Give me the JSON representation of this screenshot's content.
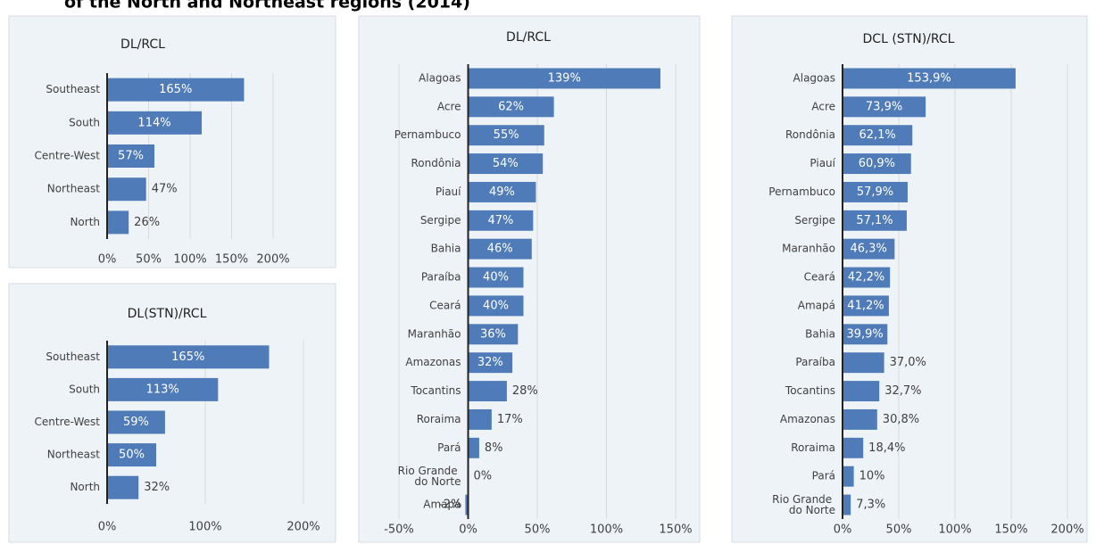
{
  "header": {
    "title": "of the North and Northeast regions (2014)"
  },
  "chart_data": [
    {
      "type": "bar",
      "title": "DL/RCL",
      "color": "#4f7cb8",
      "grid": true,
      "categories": [
        "Southeast",
        "South",
        "Centre-West",
        "Northeast",
        "North"
      ],
      "values": [
        165,
        114,
        57,
        47,
        26
      ],
      "value_labels": [
        "165%",
        "114%",
        "57%",
        "47%",
        "26%"
      ],
      "xlim": [
        0,
        200
      ],
      "xticks": [
        {
          "value": 0,
          "label": "0%"
        },
        {
          "value": 50,
          "label": "50%"
        },
        {
          "value": 100,
          "label": "100%"
        },
        {
          "value": 150,
          "label": "150%"
        },
        {
          "value": 200,
          "label": "200%"
        }
      ]
    },
    {
      "type": "bar",
      "title": "DL(STN)/RCL",
      "color": "#4f7cb8",
      "grid": true,
      "categories": [
        "Southeast",
        "South",
        "Centre-West",
        "Northeast",
        "North"
      ],
      "values": [
        165,
        113,
        59,
        50,
        32
      ],
      "value_labels": [
        "165%",
        "113%",
        "59%",
        "50%",
        "32%"
      ],
      "xlim": [
        0,
        200
      ],
      "xticks": [
        {
          "value": 0,
          "label": "0%"
        },
        {
          "value": 100,
          "label": "100%"
        },
        {
          "value": 200,
          "label": "200%"
        }
      ]
    },
    {
      "type": "bar",
      "title": "DL/RCL",
      "color": "#4f7cb8",
      "grid": true,
      "categories": [
        "Alagoas",
        "Acre",
        "Pernambuco",
        "Rondônia",
        "Piauí",
        "Sergipe",
        "Bahia",
        "Paraíba",
        "Ceará",
        "Maranhão",
        "Amazonas",
        "Tocantins",
        "Roraima",
        "Pará",
        "Rio Grande do Norte",
        "Amapá"
      ],
      "values": [
        139,
        62,
        55,
        54,
        49,
        47,
        46,
        40,
        40,
        36,
        32,
        28,
        17,
        8,
        0,
        -2
      ],
      "value_labels": [
        "139%",
        "62%",
        "55%",
        "54%",
        "49%",
        "47%",
        "46%",
        "40%",
        "40%",
        "36%",
        "32%",
        "28%",
        "17%",
        "8%",
        "0%",
        "-2%"
      ],
      "xlim": [
        -50,
        150
      ],
      "xticks": [
        {
          "value": -50,
          "label": "-50%"
        },
        {
          "value": 0,
          "label": "0%"
        },
        {
          "value": 50,
          "label": "50%"
        },
        {
          "value": 100,
          "label": "100%"
        },
        {
          "value": 150,
          "label": "150%"
        }
      ]
    },
    {
      "type": "bar",
      "title": "DCL (STN)/RCL",
      "color": "#4f7cb8",
      "grid": true,
      "categories": [
        "Alagoas",
        "Acre",
        "Rondônia",
        "Piauí",
        "Pernambuco",
        "Sergipe",
        "Maranhão",
        "Ceará",
        "Amapá",
        "Bahia",
        "Paraíba",
        "Tocantins",
        "Amazonas",
        "Roraima",
        "Pará",
        "Rio Grande do Norte"
      ],
      "values": [
        153.9,
        73.9,
        62.1,
        60.9,
        57.9,
        57.1,
        46.3,
        42.2,
        41.2,
        39.9,
        37.0,
        32.7,
        30.8,
        18.4,
        10,
        7.3
      ],
      "value_labels": [
        "153,9%",
        "73,9%",
        "62,1%",
        "60,9%",
        "57,9%",
        "57,1%",
        "46,3%",
        "42,2%",
        "41,2%",
        "39,9%",
        "37,0%",
        "32,7%",
        "30,8%",
        "18,4%",
        "10%",
        "7,3%"
      ],
      "xlim": [
        0,
        200
      ],
      "xticks": [
        {
          "value": 0,
          "label": "0%"
        },
        {
          "value": 50,
          "label": "50%"
        },
        {
          "value": 100,
          "label": "100%"
        },
        {
          "value": 150,
          "label": "150%"
        },
        {
          "value": 200,
          "label": "200%"
        }
      ]
    }
  ]
}
